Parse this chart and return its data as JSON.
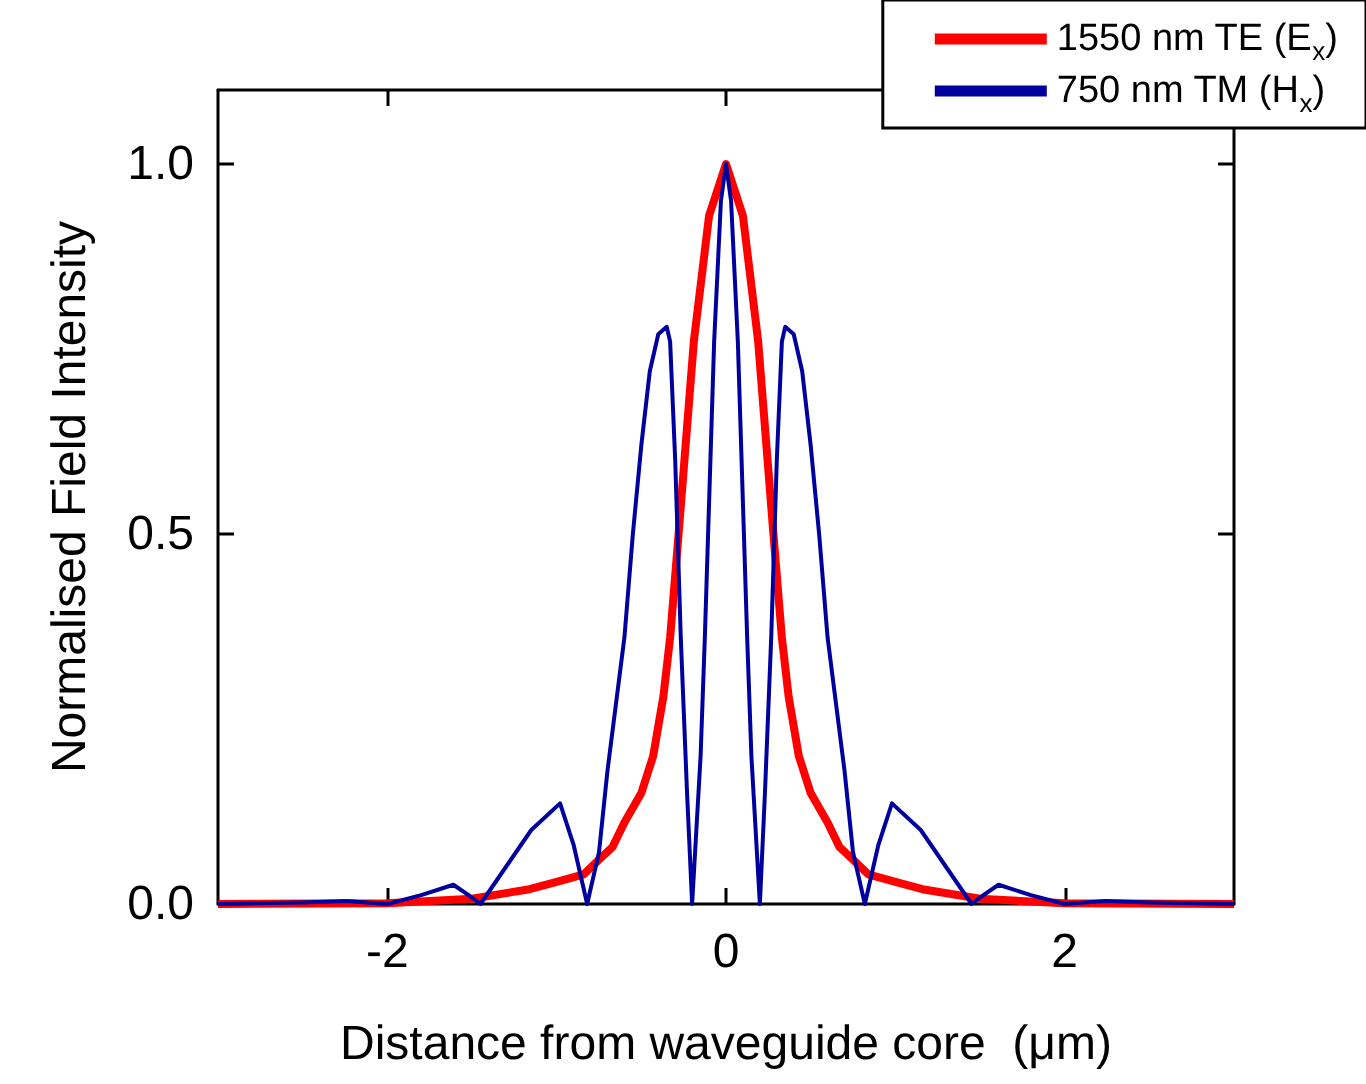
{
  "chart_data": {
    "type": "line",
    "xlabel": "Distance from waveguide core  (μm)",
    "ylabel": "Normalised Field Intensity",
    "xlim": [
      -3,
      3
    ],
    "xticks": [
      -2,
      0,
      2
    ],
    "ylim": [
      0,
      1.1
    ],
    "yticks": [
      {
        "value": 0,
        "label": "0.0"
      },
      {
        "value": 0.5,
        "label": "0.5"
      },
      {
        "value": 1,
        "label": "1.0"
      }
    ],
    "grid": false,
    "legend": "top right",
    "marker": "none",
    "line_style": "solid",
    "series": [
      {
        "name": "1550 nm TE (E$_{x}$)",
        "color": "#ff0000",
        "x": [
          -3,
          -2,
          -1.5,
          -1.16,
          -1,
          -0.84,
          -0.75,
          -0.67,
          -0.6,
          -0.5,
          -0.43,
          -0.37,
          -0.33,
          -0.28,
          -0.19,
          -0.1,
          0,
          0.1,
          0.19,
          0.28,
          0.33,
          0.37,
          0.43,
          0.5,
          0.6,
          0.67,
          0.75,
          0.84,
          1,
          1.16,
          1.5,
          2,
          3
        ],
        "values": [
          0,
          0.001,
          0.007,
          0.02,
          0.03,
          0.04,
          0.06,
          0.077,
          0.11,
          0.15,
          0.2,
          0.28,
          0.36,
          0.5,
          0.76,
          0.93,
          1,
          0.93,
          0.76,
          0.5,
          0.36,
          0.28,
          0.2,
          0.15,
          0.11,
          0.077,
          0.06,
          0.04,
          0.03,
          0.02,
          0.007,
          0.001,
          0
        ]
      },
      {
        "name": "750 nm TM (H$_{x}$)",
        "color": "#00009f",
        "x": [
          -3,
          -2.5,
          -2.24,
          -2,
          -1.8,
          -1.61,
          -1.52,
          -1.45,
          -1.3,
          -1.15,
          -0.98,
          -0.9,
          -0.82,
          -0.75,
          -0.7,
          -0.6,
          -0.55,
          -0.5,
          -0.45,
          -0.4,
          -0.35,
          -0.33,
          -0.3,
          -0.267,
          -0.23,
          -0.2,
          -0.15,
          -0.125,
          -0.07,
          -0.03,
          0,
          0.03,
          0.07,
          0.125,
          0.15,
          0.2,
          0.23,
          0.267,
          0.3,
          0.33,
          0.35,
          0.4,
          0.45,
          0.5,
          0.55,
          0.6,
          0.7,
          0.75,
          0.82,
          0.9,
          0.98,
          1.15,
          1.3,
          1.45,
          1.52,
          1.61,
          1.8,
          2,
          2.24,
          2.5,
          3
        ],
        "values": [
          0,
          0.002,
          0.004,
          0,
          0.012,
          0.026,
          0.012,
          0,
          0.05,
          0.1,
          0.136,
          0.08,
          0,
          0.07,
          0.18,
          0.36,
          0.5,
          0.62,
          0.72,
          0.77,
          0.78,
          0.76,
          0.6,
          0.36,
          0.15,
          0,
          0.2,
          0.36,
          0.76,
          0.95,
          1,
          0.95,
          0.76,
          0.36,
          0.2,
          0,
          0.15,
          0.36,
          0.6,
          0.76,
          0.78,
          0.77,
          0.72,
          0.62,
          0.5,
          0.36,
          0.18,
          0.07,
          0,
          0.08,
          0.136,
          0.1,
          0.05,
          0,
          0.012,
          0.026,
          0.012,
          0,
          0.004,
          0.002,
          0
        ]
      }
    ]
  }
}
